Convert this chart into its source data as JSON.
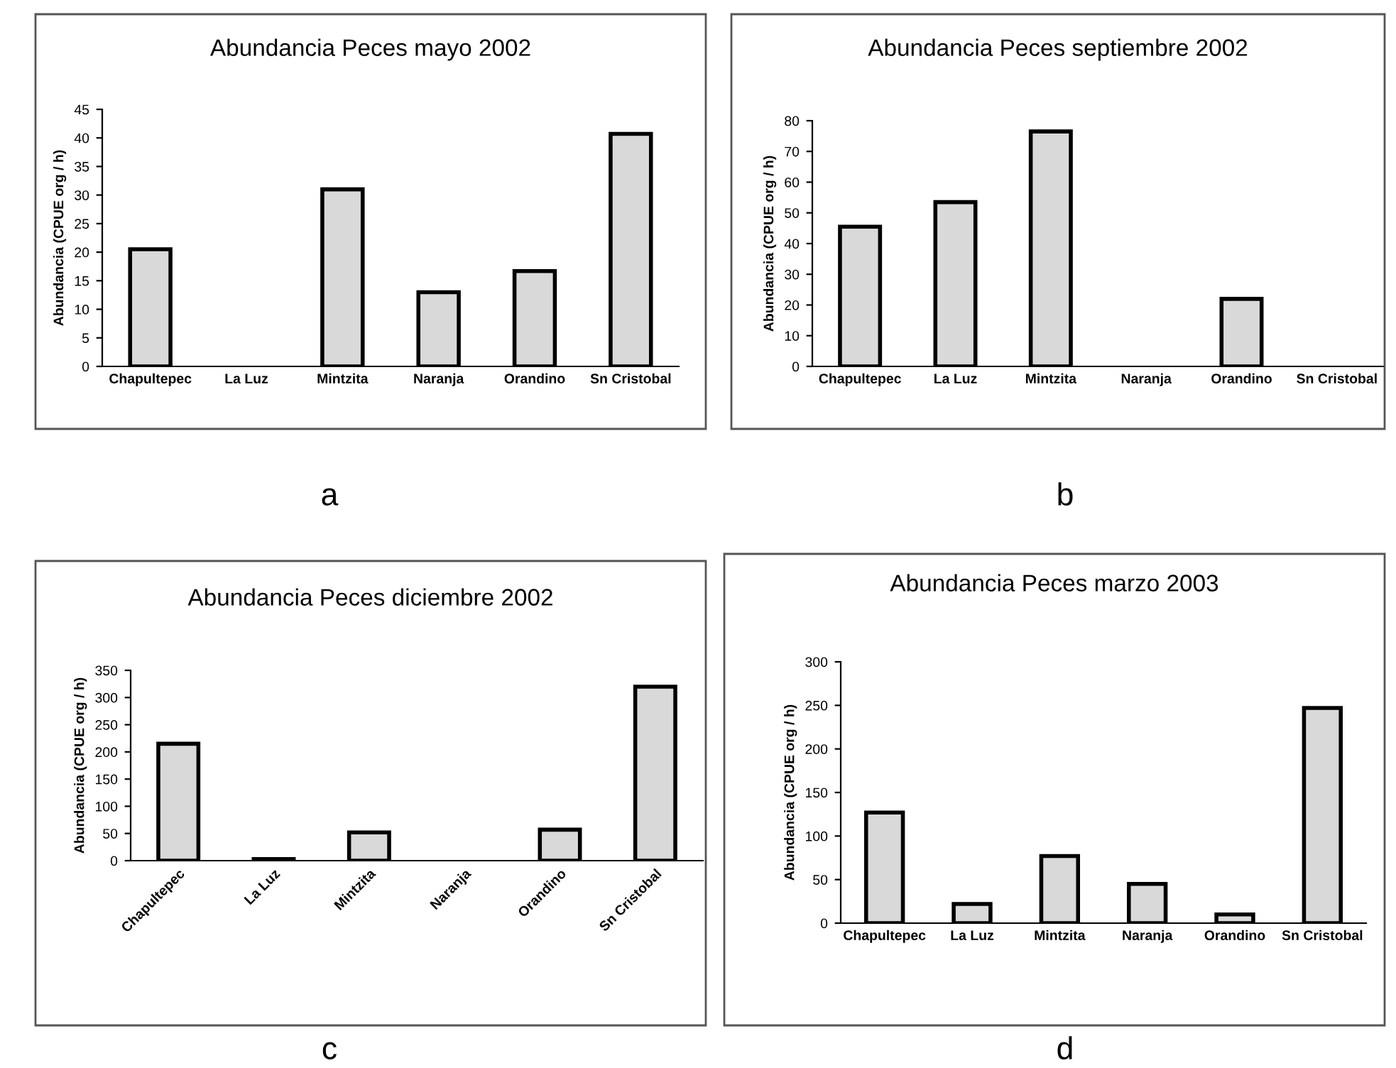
{
  "chart_data": [
    {
      "type": "bar",
      "title": "Abundancia Peces mayo 2002",
      "ylabel": "Abundancia (CPUE org / h)",
      "categories": [
        "Chapultepec",
        "La Luz",
        "Mintzita",
        "Naranja",
        "Orandino",
        "Sn Cristobal"
      ],
      "values": [
        20.5,
        0,
        31,
        13,
        16.7,
        40.7
      ],
      "color": "#d9d9d9",
      "ylim": [
        0,
        45
      ],
      "yticks": [
        0,
        5,
        10,
        15,
        20,
        25,
        30,
        35,
        40,
        45
      ],
      "grid": false,
      "annotations": [
        "a"
      ]
    },
    {
      "type": "bar",
      "title": "Abundancia Peces septiembre 2002",
      "ylabel": "Abundancia (CPUE org / h)",
      "categories": [
        "Chapultepec",
        "La Luz",
        "Mintzita",
        "Naranja",
        "Orandino",
        "Sn Cristobal"
      ],
      "values": [
        45.5,
        53.5,
        76.5,
        0,
        22,
        0
      ],
      "color": "#d9d9d9",
      "ylim": [
        0,
        80
      ],
      "yticks": [
        0,
        10,
        20,
        30,
        40,
        50,
        60,
        70,
        80
      ],
      "grid": false,
      "annotations": [
        "b"
      ]
    },
    {
      "type": "bar",
      "title": "Abundancia Peces diciembre 2002",
      "ylabel": "Abundancia (CPUE org / h)",
      "categories": [
        "Chapultepec",
        "La Luz",
        "Mintzita",
        "Naranja",
        "Orandino",
        "Sn Cristobal"
      ],
      "values": [
        215,
        3,
        52,
        0,
        57,
        320
      ],
      "color": "#d9d9d9",
      "ylim": [
        0,
        350
      ],
      "yticks": [
        0,
        50,
        100,
        150,
        200,
        250,
        300,
        350
      ],
      "grid": false,
      "annotations": [
        "c"
      ]
    },
    {
      "type": "bar",
      "title": "Abundancia Peces marzo 2003",
      "ylabel": "Abundancia (CPUE org / h)",
      "categories": [
        "Chapultepec",
        "La Luz",
        "Mintzita",
        "Naranja",
        "Orandino",
        "Sn Cristobal"
      ],
      "values": [
        127,
        22,
        77,
        45,
        10,
        247
      ],
      "color": "#d9d9d9",
      "ylim": [
        0,
        300
      ],
      "yticks": [
        0,
        50,
        100,
        150,
        200,
        250,
        300
      ],
      "grid": false,
      "annotations": [
        "d"
      ]
    }
  ]
}
